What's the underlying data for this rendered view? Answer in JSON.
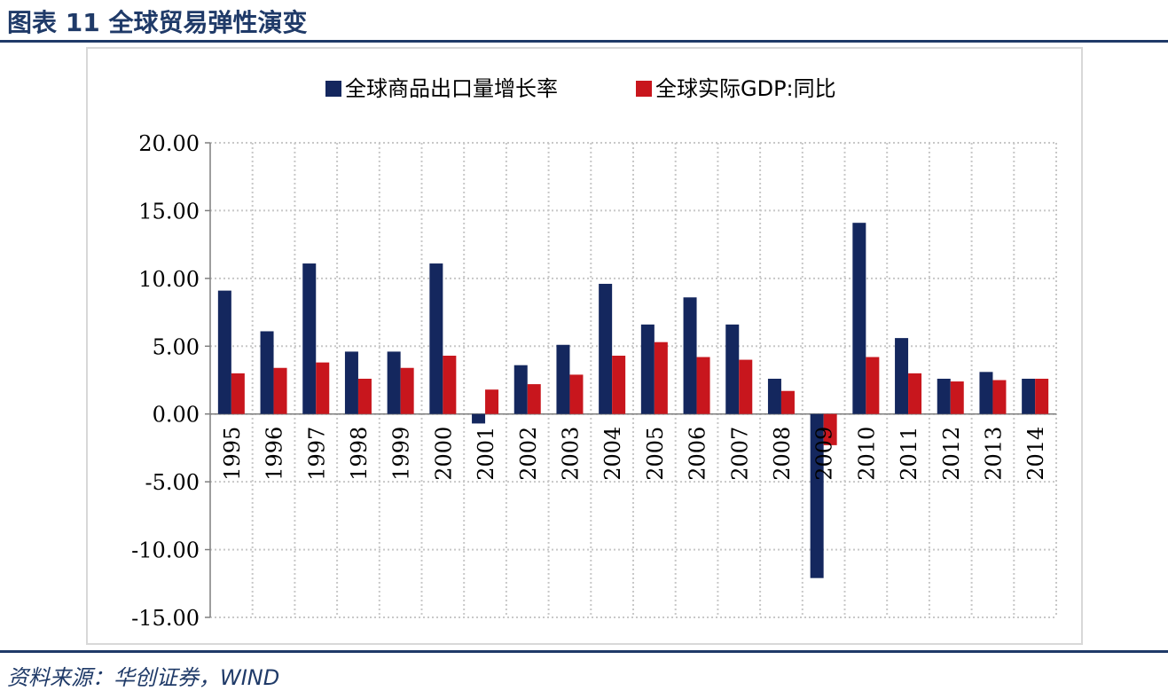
{
  "figure": {
    "title": "图表 11 全球贸易弹性演变",
    "source": "资料来源：华创证券，WIND"
  },
  "colors": {
    "series_export": "#14275e",
    "series_gdp": "#c8161d",
    "grid": "#c8c8c8",
    "axis": "#7f7f7f"
  },
  "chart_data": {
    "type": "bar",
    "title": "",
    "xlabel": "",
    "ylabel": "",
    "ylim": [
      -15,
      20
    ],
    "ytick_step": 5,
    "grid": true,
    "legend_position": "top-center",
    "categories": [
      "1995",
      "1996",
      "1997",
      "1998",
      "1999",
      "2000",
      "2001",
      "2002",
      "2003",
      "2004",
      "2005",
      "2006",
      "2007",
      "2008",
      "2009",
      "2010",
      "2011",
      "2012",
      "2013",
      "2014"
    ],
    "yticks": [
      "20.00",
      "15.00",
      "10.00",
      "5.00",
      "0.00",
      "-5.00",
      "-10.00",
      "-15.00"
    ],
    "series": [
      {
        "name": "全球商品出口量增长率",
        "color": "#14275e",
        "values": [
          9.1,
          6.1,
          11.1,
          4.6,
          4.6,
          11.1,
          -0.7,
          3.6,
          5.1,
          9.6,
          6.6,
          8.6,
          6.6,
          2.6,
          -12.1,
          14.1,
          5.6,
          2.6,
          3.1,
          2.6
        ]
      },
      {
        "name": "全球实际GDP:同比",
        "color": "#c8161d",
        "values": [
          3.0,
          3.4,
          3.8,
          2.6,
          3.4,
          4.3,
          1.8,
          2.2,
          2.9,
          4.3,
          5.3,
          4.2,
          4.0,
          1.7,
          -2.3,
          4.2,
          3.0,
          2.4,
          2.5,
          2.6
        ]
      }
    ]
  }
}
